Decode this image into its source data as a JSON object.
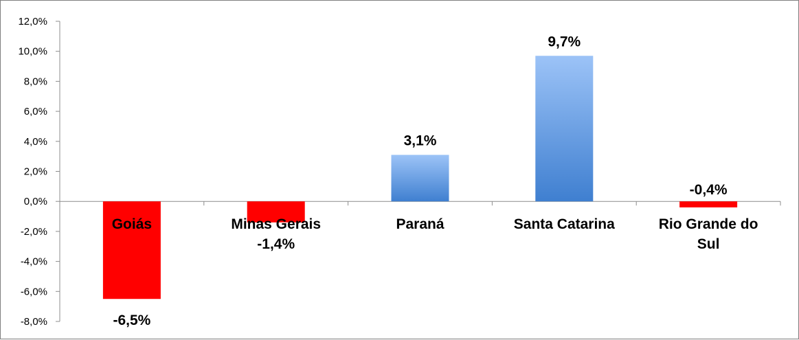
{
  "chart_data": {
    "type": "bar",
    "title": "",
    "xlabel": "",
    "ylabel": "",
    "categories": [
      "Goiás",
      "Minas Gerais",
      "Paraná",
      "Santa Catarina",
      "Rio Grande do Sul"
    ],
    "category_lines": [
      [
        "Goiás"
      ],
      [
        "Minas Gerais"
      ],
      [
        "Paraná"
      ],
      [
        "Santa Catarina"
      ],
      [
        "Rio Grande do",
        "Sul"
      ]
    ],
    "values": [
      -6.5,
      -1.4,
      3.1,
      9.7,
      -0.4
    ],
    "data_labels": [
      "-6,5%",
      "-1,4%",
      "3,1%",
      "9,7%",
      "-0,4%"
    ],
    "ylim": [
      -8,
      12
    ],
    "yticks": [
      12,
      10,
      8,
      6,
      4,
      2,
      0,
      -2,
      -4,
      -6,
      -8
    ],
    "ytick_labels": [
      "12,0%",
      "10,0%",
      "8,0%",
      "6,0%",
      "4,0%",
      "2,0%",
      "0,0%",
      "-2,0%",
      "-4,0%",
      "-6,0%",
      "-8,0%"
    ],
    "grid": false,
    "legend": "none",
    "colors": {
      "negative": "#ff0000",
      "positive_top": "#9cc3f7",
      "positive_bottom": "#3f7fd0",
      "axis": "#8c8c8c"
    }
  }
}
